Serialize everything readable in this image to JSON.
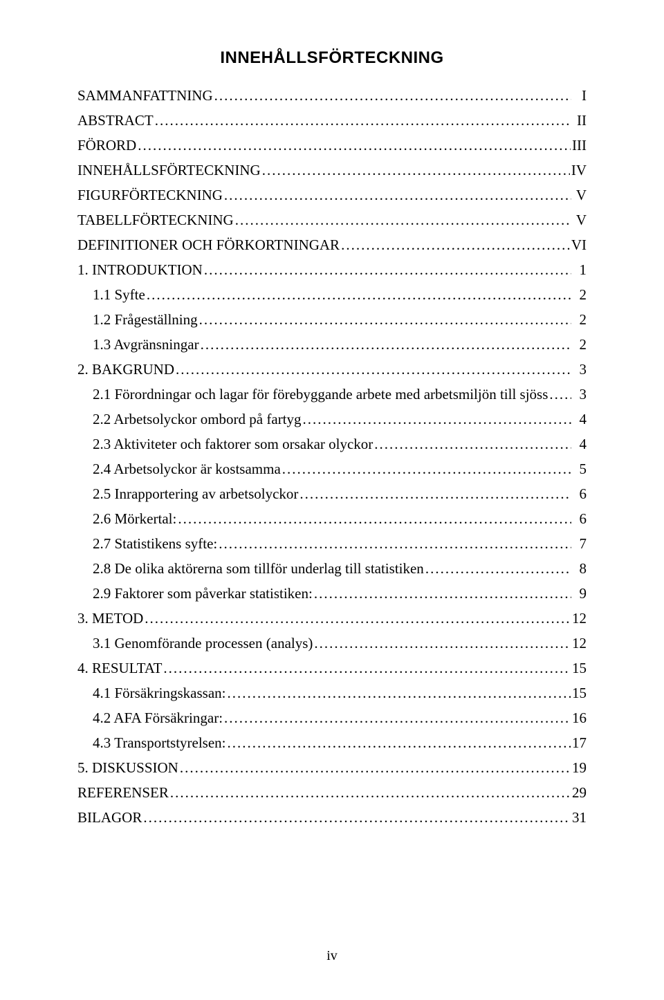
{
  "title": "INNEHÅLLSFÖRTECKNING",
  "page_number": "iv",
  "toc": [
    {
      "label": "SAMMANFATTNING",
      "page": "I",
      "level": 0
    },
    {
      "label": "ABSTRACT",
      "page": "II",
      "level": 0
    },
    {
      "label": "FÖRORD",
      "page": "III",
      "level": 0
    },
    {
      "label": "INNEHÅLLSFÖRTECKNING",
      "page": "IV",
      "level": 0
    },
    {
      "label": "FIGURFÖRTECKNING",
      "page": "V",
      "level": 0
    },
    {
      "label": "TABELLFÖRTECKNING",
      "page": "V",
      "level": 0
    },
    {
      "label": "DEFINITIONER OCH FÖRKORTNINGAR",
      "page": "VI",
      "level": 0
    },
    {
      "label": "1. INTRODUKTION",
      "page": "1",
      "level": 0
    },
    {
      "label": "1.1 Syfte",
      "page": "2",
      "level": 1
    },
    {
      "label": "1.2 Frågeställning",
      "page": "2",
      "level": 1
    },
    {
      "label": "1.3 Avgränsningar",
      "page": "2",
      "level": 1
    },
    {
      "label": "2. BAKGRUND",
      "page": "3",
      "level": 0
    },
    {
      "label": "2.1 Förordningar och lagar för förebyggande arbete med arbetsmiljön till sjöss",
      "page": "3",
      "level": 1
    },
    {
      "label": "2.2 Arbetsolyckor ombord på fartyg",
      "page": "4",
      "level": 1
    },
    {
      "label": "2.3 Aktiviteter och faktorer som orsakar olyckor",
      "page": "4",
      "level": 1
    },
    {
      "label": "2.4 Arbetsolyckor är kostsamma",
      "page": "5",
      "level": 1
    },
    {
      "label": "2.5 Inrapportering av arbetsolyckor",
      "page": "6",
      "level": 1
    },
    {
      "label": "2.6 Mörkertal:",
      "page": "6",
      "level": 1
    },
    {
      "label": "2.7 Statistikens syfte:",
      "page": "7",
      "level": 1
    },
    {
      "label": "2.8 De olika aktörerna som tillför underlag till statistiken",
      "page": "8",
      "level": 1
    },
    {
      "label": "2.9 Faktorer som påverkar statistiken:",
      "page": "9",
      "level": 1
    },
    {
      "label": "3. METOD",
      "page": "12",
      "level": 0
    },
    {
      "label": "3.1 Genomförande processen (analys)",
      "page": "12",
      "level": 1
    },
    {
      "label": "4. RESULTAT",
      "page": "15",
      "level": 0
    },
    {
      "label": "4.1 Försäkringskassan:",
      "page": "15",
      "level": 1
    },
    {
      "label": "4.2 AFA Försäkringar:",
      "page": "16",
      "level": 1
    },
    {
      "label": "4.3 Transportstyrelsen:",
      "page": "17",
      "level": 1
    },
    {
      "label": "5. DISKUSSION",
      "page": "19",
      "level": 0
    },
    {
      "label": "REFERENSER",
      "page": "29",
      "level": 0
    },
    {
      "label": "BILAGOR",
      "page": "31",
      "level": 0
    }
  ]
}
